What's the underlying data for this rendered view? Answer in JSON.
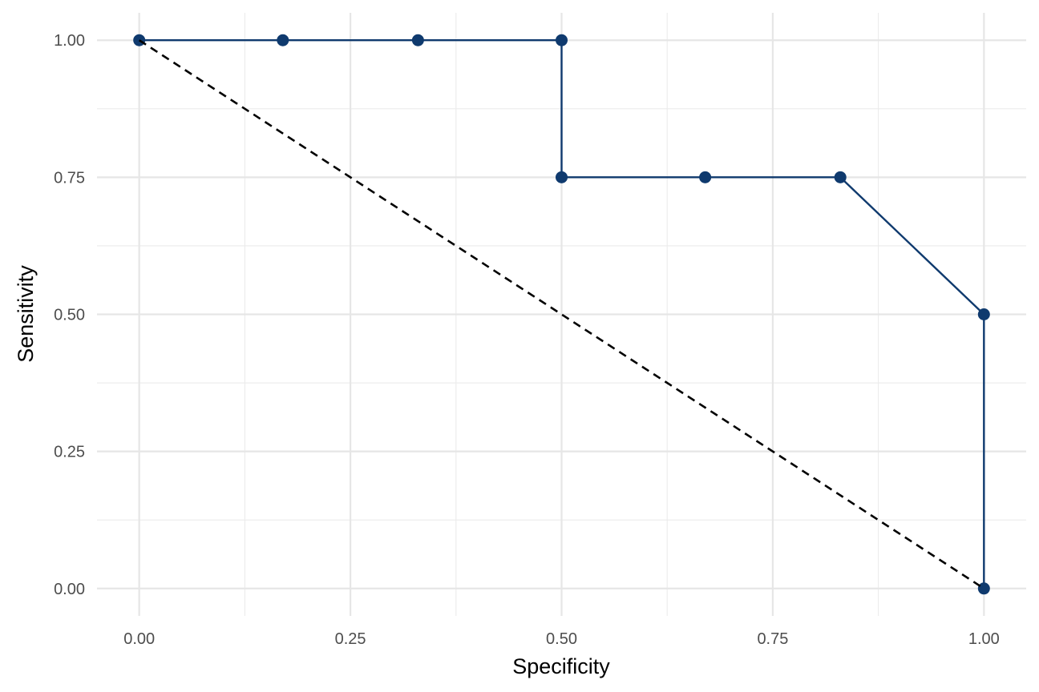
{
  "chart_data": {
    "type": "line",
    "title": "",
    "xlabel": "Specificity",
    "ylabel": "Sensitivity",
    "xlim": [
      -0.05,
      1.05
    ],
    "ylim": [
      -0.05,
      1.05
    ],
    "x_ticks": [
      0,
      0.25,
      0.5,
      0.75,
      1
    ],
    "x_tick_labels": [
      "0.00",
      "0.25",
      "0.50",
      "0.75",
      "1.00"
    ],
    "y_ticks": [
      0,
      0.25,
      0.5,
      0.75,
      1
    ],
    "y_tick_labels": [
      "0.00",
      "0.25",
      "0.50",
      "0.75",
      "1.00"
    ],
    "grid": true,
    "legend": "none",
    "series": [
      {
        "line_style": "solid",
        "markers": true,
        "color": "#0f3a6e",
        "x": [
          0.0,
          0.17,
          0.33,
          0.5,
          0.5,
          0.67,
          0.83,
          1.0,
          1.0
        ],
        "y": [
          1.0,
          1.0,
          1.0,
          1.0,
          0.75,
          0.75,
          0.75,
          0.5,
          0.0
        ]
      },
      {
        "line_style": "dashed",
        "markers": false,
        "color": "#000000",
        "x": [
          0.0,
          1.0
        ],
        "y": [
          1.0,
          0.0
        ]
      }
    ]
  }
}
